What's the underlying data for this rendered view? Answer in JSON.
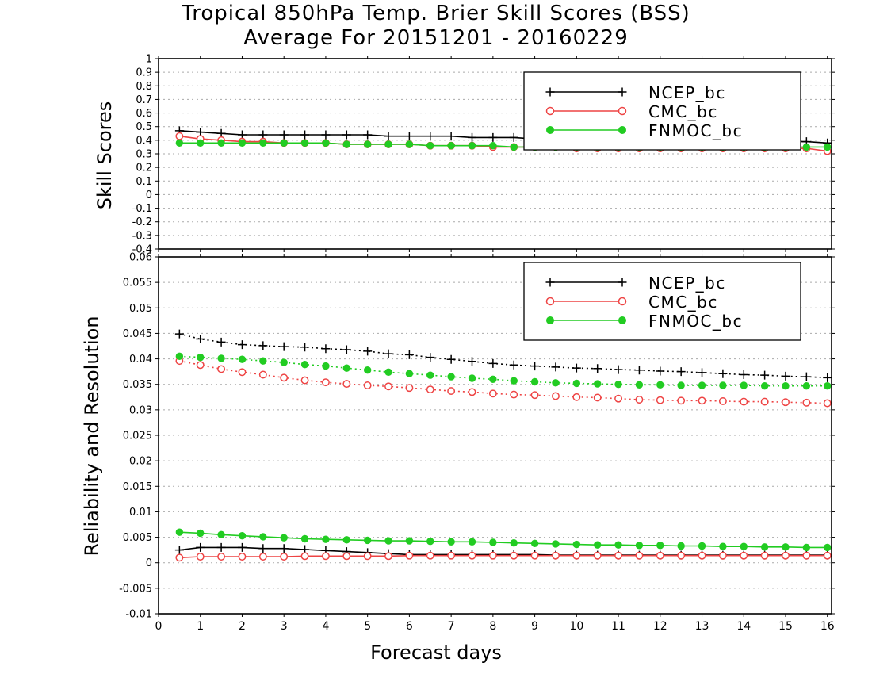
{
  "figure": {
    "title_line1": "Tropical 850hPa Temp. Brier Skill Scores (BSS)",
    "title_line2": "Average For 20151201 - 20160229",
    "xlabel": "Forecast days"
  },
  "colors": {
    "NCEP_bc": "#000000",
    "CMC_bc": "#ee4444",
    "FNMOC_bc": "#22cc22"
  },
  "chart_data": [
    {
      "type": "line",
      "ylabel": "Skill Scores",
      "xlim": [
        0,
        16.1
      ],
      "ylim": [
        -0.4,
        1
      ],
      "x_ticks": [
        0,
        1,
        2,
        3,
        4,
        5,
        6,
        7,
        8,
        9,
        10,
        11,
        12,
        13,
        14,
        15,
        16
      ],
      "y_ticks": [
        -0.4,
        -0.3,
        -0.2,
        -0.1,
        0,
        0.1,
        0.2,
        0.3,
        0.4,
        0.5,
        0.6,
        0.7,
        0.8,
        0.9,
        1
      ],
      "y_tick_labels": [
        "-0.4",
        "-0.3",
        "-0.2",
        "-0.1",
        "0",
        "0.1",
        "0.2",
        "0.3",
        "0.4",
        "0.5",
        "0.6",
        "0.7",
        "0.8",
        "0.9",
        "1"
      ],
      "grid": "horizontal dotted",
      "legend": "top-right",
      "x": [
        0.5,
        1,
        1.5,
        2,
        2.5,
        3,
        3.5,
        4,
        4.5,
        5,
        5.5,
        6,
        6.5,
        7,
        7.5,
        8,
        8.5,
        9,
        9.5,
        10,
        10.5,
        11,
        11.5,
        12,
        12.5,
        13,
        13.5,
        14,
        14.5,
        15,
        15.5,
        16
      ],
      "series": [
        {
          "name": "NCEP_bc",
          "marker": "plus",
          "line": "solid",
          "values": [
            0.47,
            0.46,
            0.45,
            0.44,
            0.44,
            0.44,
            0.44,
            0.44,
            0.44,
            0.44,
            0.43,
            0.43,
            0.43,
            0.43,
            0.42,
            0.42,
            0.42,
            0.41,
            0.41,
            0.41,
            0.41,
            0.41,
            0.41,
            0.41,
            0.4,
            0.4,
            0.4,
            0.4,
            0.4,
            0.39,
            0.39,
            0.38
          ]
        },
        {
          "name": "CMC_bc",
          "marker": "open-circle",
          "line": "solid",
          "values": [
            0.43,
            0.41,
            0.4,
            0.39,
            0.39,
            0.38,
            0.38,
            0.38,
            0.37,
            0.37,
            0.37,
            0.37,
            0.36,
            0.36,
            0.36,
            0.35,
            0.35,
            0.35,
            0.35,
            0.34,
            0.34,
            0.34,
            0.34,
            0.34,
            0.34,
            0.34,
            0.34,
            0.34,
            0.34,
            0.34,
            0.34,
            0.32
          ]
        },
        {
          "name": "FNMOC_bc",
          "marker": "filled-circle",
          "line": "solid",
          "values": [
            0.38,
            0.38,
            0.38,
            0.38,
            0.38,
            0.38,
            0.38,
            0.38,
            0.37,
            0.37,
            0.37,
            0.37,
            0.36,
            0.36,
            0.36,
            0.36,
            0.35,
            0.35,
            0.35,
            0.35,
            0.35,
            0.35,
            0.35,
            0.35,
            0.35,
            0.35,
            0.35,
            0.35,
            0.35,
            0.35,
            0.35,
            0.35
          ]
        }
      ]
    },
    {
      "type": "line",
      "ylabel": "Reliability and Resolution",
      "xlim": [
        0,
        16.1
      ],
      "ylim": [
        -0.01,
        0.06
      ],
      "x_ticks": [
        0,
        1,
        2,
        3,
        4,
        5,
        6,
        7,
        8,
        9,
        10,
        11,
        12,
        13,
        14,
        15,
        16
      ],
      "y_ticks": [
        -0.01,
        -0.005,
        0,
        0.005,
        0.01,
        0.015,
        0.02,
        0.025,
        0.03,
        0.035,
        0.04,
        0.045,
        0.05,
        0.055,
        0.06
      ],
      "y_tick_labels": [
        "-0.01",
        "-0.005",
        "0",
        "0.005",
        "0.01",
        "0.015",
        "0.02",
        "0.025",
        "0.03",
        "0.035",
        "0.04",
        "0.045",
        "0.05",
        "0.055",
        "0.06"
      ],
      "grid": "horizontal dotted",
      "legend": "top-right",
      "x": [
        0.5,
        1,
        1.5,
        2,
        2.5,
        3,
        3.5,
        4,
        4.5,
        5,
        5.5,
        6,
        6.5,
        7,
        7.5,
        8,
        8.5,
        9,
        9.5,
        10,
        10.5,
        11,
        11.5,
        12,
        12.5,
        13,
        13.5,
        14,
        14.5,
        15,
        15.5,
        16
      ],
      "series": [
        {
          "name": "NCEP_bc",
          "marker": "plus",
          "line": "solid",
          "values": [
            0.0025,
            0.003,
            0.003,
            0.003,
            0.0028,
            0.0028,
            0.0026,
            0.0024,
            0.0022,
            0.002,
            0.0018,
            0.0016,
            0.0016,
            0.0016,
            0.0016,
            0.0016,
            0.0016,
            0.0016,
            0.0015,
            0.0015,
            0.0015,
            0.0015,
            0.0015,
            0.0015,
            0.0015,
            0.0015,
            0.0015,
            0.0015,
            0.0015,
            0.0015,
            0.0015,
            0.0015
          ]
        },
        {
          "name": "CMC_bc",
          "marker": "open-circle",
          "line": "solid",
          "values": [
            0.001,
            0.0012,
            0.0012,
            0.0012,
            0.0012,
            0.0012,
            0.0013,
            0.0013,
            0.0013,
            0.0013,
            0.0013,
            0.0014,
            0.0014,
            0.0014,
            0.0014,
            0.0014,
            0.0014,
            0.0014,
            0.0014,
            0.0014,
            0.0014,
            0.0014,
            0.0014,
            0.0014,
            0.0014,
            0.0014,
            0.0014,
            0.0014,
            0.0014,
            0.0014,
            0.0014,
            0.0014
          ]
        },
        {
          "name": "FNMOC_bc",
          "marker": "filled-circle",
          "line": "solid",
          "values": [
            0.006,
            0.0058,
            0.0055,
            0.0053,
            0.0051,
            0.0049,
            0.0047,
            0.0046,
            0.0045,
            0.0044,
            0.0043,
            0.0043,
            0.0042,
            0.0041,
            0.0041,
            0.004,
            0.0039,
            0.0038,
            0.0037,
            0.0036,
            0.0035,
            0.0035,
            0.0034,
            0.0034,
            0.0033,
            0.0033,
            0.0032,
            0.0032,
            0.0031,
            0.0031,
            0.003,
            0.003
          ]
        },
        {
          "name": "NCEP_bc",
          "marker": "plus",
          "line": "dotted",
          "values": [
            0.0449,
            0.0439,
            0.0433,
            0.0428,
            0.0426,
            0.0424,
            0.0423,
            0.042,
            0.0418,
            0.0415,
            0.041,
            0.0408,
            0.0403,
            0.0399,
            0.0395,
            0.0391,
            0.0388,
            0.0386,
            0.0384,
            0.0382,
            0.0381,
            0.0379,
            0.0378,
            0.0376,
            0.0375,
            0.0373,
            0.0371,
            0.0369,
            0.0368,
            0.0366,
            0.0365,
            0.0363
          ]
        },
        {
          "name": "CMC_bc",
          "marker": "open-circle",
          "line": "dotted",
          "values": [
            0.0396,
            0.0388,
            0.038,
            0.0374,
            0.0369,
            0.0363,
            0.0358,
            0.0354,
            0.0351,
            0.0348,
            0.0346,
            0.0343,
            0.034,
            0.0337,
            0.0335,
            0.0332,
            0.033,
            0.0329,
            0.0327,
            0.0325,
            0.0324,
            0.0322,
            0.032,
            0.0319,
            0.0318,
            0.0318,
            0.0317,
            0.0316,
            0.0316,
            0.0315,
            0.0314,
            0.0313
          ]
        },
        {
          "name": "FNMOC_bc",
          "marker": "filled-circle",
          "line": "dotted",
          "values": [
            0.0405,
            0.0403,
            0.0401,
            0.0399,
            0.0396,
            0.0393,
            0.0389,
            0.0386,
            0.0382,
            0.0378,
            0.0374,
            0.0371,
            0.0368,
            0.0365,
            0.0362,
            0.036,
            0.0357,
            0.0355,
            0.0353,
            0.0352,
            0.0351,
            0.035,
            0.0349,
            0.0349,
            0.0348,
            0.0348,
            0.0348,
            0.0348,
            0.0347,
            0.0347,
            0.0347,
            0.0347
          ]
        }
      ]
    }
  ]
}
